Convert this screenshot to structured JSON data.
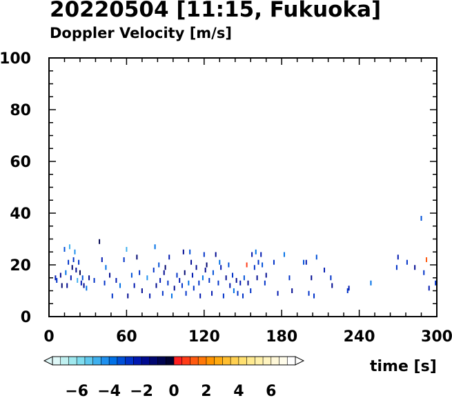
{
  "chart_data": {
    "type": "scatter",
    "title": "20220504 [11:15, Fukuoka]",
    "subtitle": "Doppler Velocity [m/s]",
    "xlabel": "time [s]",
    "ylabel": "",
    "xlim": [
      0,
      300
    ],
    "ylim": [
      0,
      100
    ],
    "x_ticks": [
      0,
      60,
      120,
      180,
      240,
      300
    ],
    "y_ticks": [
      0,
      20,
      40,
      60,
      80,
      100
    ],
    "grid": false,
    "colorbar": {
      "min": -7.5,
      "max": 7.5,
      "tick_values": [
        -6,
        -4,
        -2,
        0,
        2,
        4,
        6
      ],
      "tick_labels": [
        "−6",
        "−4",
        "−2",
        "0",
        "2",
        "4",
        "6"
      ],
      "colors": [
        "#dff8f8",
        "#bff0f0",
        "#9fe8ee",
        "#7fdcee",
        "#5fc8ee",
        "#3fb0ee",
        "#1f90ee",
        "#0070e6",
        "#0050d8",
        "#0032c8",
        "#0018b0",
        "#000a90",
        "#000670",
        "#000450",
        "#000230",
        "#ff2020",
        "#ff3c18",
        "#ff5a10",
        "#ff7808",
        "#ff9400",
        "#ffaa10",
        "#ffbe30",
        "#ffd050",
        "#ffe070",
        "#ffea90",
        "#fff0a8",
        "#fff4c0",
        "#fff8d8",
        "#fffcea",
        "#ffffff"
      ]
    },
    "points": [
      {
        "x": 5,
        "y": 15,
        "v": -2.5
      },
      {
        "x": 6,
        "y": 14,
        "v": -3
      },
      {
        "x": 9,
        "y": 16,
        "v": -2
      },
      {
        "x": 10,
        "y": 12,
        "v": -1.5
      },
      {
        "x": 12,
        "y": 26,
        "v": -3.5
      },
      {
        "x": 13,
        "y": 17,
        "v": -4
      },
      {
        "x": 14,
        "y": 12,
        "v": -2
      },
      {
        "x": 15,
        "y": 21,
        "v": -3
      },
      {
        "x": 16,
        "y": 27,
        "v": -5
      },
      {
        "x": 17,
        "y": 15,
        "v": -2.5
      },
      {
        "x": 18,
        "y": 19,
        "v": -1.5
      },
      {
        "x": 19,
        "y": 22,
        "v": -3
      },
      {
        "x": 20,
        "y": 25,
        "v": -4.5
      },
      {
        "x": 21,
        "y": 18,
        "v": -2
      },
      {
        "x": 22,
        "y": 14,
        "v": -5
      },
      {
        "x": 23,
        "y": 21,
        "v": -3
      },
      {
        "x": 24,
        "y": 17,
        "v": -1
      },
      {
        "x": 25,
        "y": 13,
        "v": -2.5
      },
      {
        "x": 26,
        "y": 15,
        "v": -3.5
      },
      {
        "x": 27,
        "y": 12,
        "v": -2
      },
      {
        "x": 29,
        "y": 11,
        "v": -4
      },
      {
        "x": 31,
        "y": 15,
        "v": -2
      },
      {
        "x": 35,
        "y": 14,
        "v": -3
      },
      {
        "x": 39,
        "y": 29,
        "v": -1
      },
      {
        "x": 41,
        "y": 22,
        "v": -2.5
      },
      {
        "x": 43,
        "y": 13,
        "v": -3
      },
      {
        "x": 44,
        "y": 19,
        "v": -4
      },
      {
        "x": 47,
        "y": 16,
        "v": -2
      },
      {
        "x": 49,
        "y": 8,
        "v": -3
      },
      {
        "x": 52,
        "y": 14,
        "v": -2.5
      },
      {
        "x": 55,
        "y": 12,
        "v": -4
      },
      {
        "x": 58,
        "y": 22,
        "v": -3
      },
      {
        "x": 60,
        "y": 26,
        "v": -5
      },
      {
        "x": 61,
        "y": 8,
        "v": -2
      },
      {
        "x": 64,
        "y": 16,
        "v": -3.5
      },
      {
        "x": 66,
        "y": 12,
        "v": -2.5
      },
      {
        "x": 68,
        "y": 23,
        "v": -1.5
      },
      {
        "x": 70,
        "y": 17,
        "v": -3
      },
      {
        "x": 72,
        "y": 10,
        "v": -2
      },
      {
        "x": 76,
        "y": 15,
        "v": -4.5
      },
      {
        "x": 78,
        "y": 8,
        "v": -2.5
      },
      {
        "x": 81,
        "y": 18,
        "v": -3
      },
      {
        "x": 82,
        "y": 27,
        "v": -4
      },
      {
        "x": 83,
        "y": 12,
        "v": -2
      },
      {
        "x": 85,
        "y": 20,
        "v": -3.5
      },
      {
        "x": 86,
        "y": 14,
        "v": -2.5
      },
      {
        "x": 88,
        "y": 9,
        "v": -3
      },
      {
        "x": 89,
        "y": 17,
        "v": -2
      },
      {
        "x": 90,
        "y": 19,
        "v": -1.5
      },
      {
        "x": 92,
        "y": 13,
        "v": -3
      },
      {
        "x": 93,
        "y": 23,
        "v": -2.5
      },
      {
        "x": 95,
        "y": 8,
        "v": -4
      },
      {
        "x": 97,
        "y": 11,
        "v": -2
      },
      {
        "x": 99,
        "y": 16,
        "v": -3
      },
      {
        "x": 101,
        "y": 14,
        "v": -2.5
      },
      {
        "x": 103,
        "y": 12,
        "v": -3
      },
      {
        "x": 104,
        "y": 25,
        "v": -2
      },
      {
        "x": 105,
        "y": 17,
        "v": -1.5
      },
      {
        "x": 106,
        "y": 9,
        "v": -3
      },
      {
        "x": 108,
        "y": 13,
        "v": -4
      },
      {
        "x": 109,
        "y": 25,
        "v": -3.5
      },
      {
        "x": 110,
        "y": 21,
        "v": -2
      },
      {
        "x": 111,
        "y": 16,
        "v": -2.5
      },
      {
        "x": 112,
        "y": 11,
        "v": -3
      },
      {
        "x": 114,
        "y": 19,
        "v": -2
      },
      {
        "x": 116,
        "y": 13,
        "v": -3
      },
      {
        "x": 117,
        "y": 8,
        "v": -2.5
      },
      {
        "x": 119,
        "y": 15,
        "v": -4
      },
      {
        "x": 120,
        "y": 24,
        "v": -3
      },
      {
        "x": 121,
        "y": 18,
        "v": -2
      },
      {
        "x": 122,
        "y": 20,
        "v": -1.5
      },
      {
        "x": 124,
        "y": 14,
        "v": -3
      },
      {
        "x": 126,
        "y": 9,
        "v": -2.5
      },
      {
        "x": 127,
        "y": 17,
        "v": -3.5
      },
      {
        "x": 129,
        "y": 24,
        "v": -2
      },
      {
        "x": 131,
        "y": 13,
        "v": -3
      },
      {
        "x": 132,
        "y": 21,
        "v": -4
      },
      {
        "x": 133,
        "y": 19,
        "v": -2.5
      },
      {
        "x": 135,
        "y": 8,
        "v": -3
      },
      {
        "x": 137,
        "y": 15,
        "v": -2
      },
      {
        "x": 139,
        "y": 20,
        "v": -3.5
      },
      {
        "x": 140,
        "y": 12,
        "v": -2.5
      },
      {
        "x": 142,
        "y": 16,
        "v": -3
      },
      {
        "x": 143,
        "y": 10,
        "v": -4
      },
      {
        "x": 145,
        "y": 14,
        "v": -2
      },
      {
        "x": 146,
        "y": 9,
        "v": -3
      },
      {
        "x": 148,
        "y": 13,
        "v": -2.5
      },
      {
        "x": 150,
        "y": 8,
        "v": -3
      },
      {
        "x": 151,
        "y": 15,
        "v": -3.5
      },
      {
        "x": 153,
        "y": 20,
        "v": 0.5
      },
      {
        "x": 154,
        "y": 13,
        "v": -2
      },
      {
        "x": 156,
        "y": 10,
        "v": -3
      },
      {
        "x": 157,
        "y": 24,
        "v": -2.5
      },
      {
        "x": 159,
        "y": 19,
        "v": -3
      },
      {
        "x": 160,
        "y": 25,
        "v": -4
      },
      {
        "x": 161,
        "y": 15,
        "v": -2
      },
      {
        "x": 162,
        "y": 21,
        "v": -3
      },
      {
        "x": 164,
        "y": 24,
        "v": -2.5
      },
      {
        "x": 165,
        "y": 20,
        "v": -3.5
      },
      {
        "x": 167,
        "y": 13,
        "v": -3
      },
      {
        "x": 168,
        "y": 16,
        "v": -2
      },
      {
        "x": 174,
        "y": 21,
        "v": -3
      },
      {
        "x": 177,
        "y": 9,
        "v": -2.5
      },
      {
        "x": 182,
        "y": 24,
        "v": -4
      },
      {
        "x": 186,
        "y": 15,
        "v": -3
      },
      {
        "x": 188,
        "y": 10,
        "v": -2
      },
      {
        "x": 197,
        "y": 21,
        "v": -3.5
      },
      {
        "x": 199,
        "y": 21,
        "v": -2.5
      },
      {
        "x": 201,
        "y": 9,
        "v": -3
      },
      {
        "x": 203,
        "y": 15,
        "v": -2
      },
      {
        "x": 205,
        "y": 8,
        "v": -3
      },
      {
        "x": 207,
        "y": 23,
        "v": -3.5
      },
      {
        "x": 213,
        "y": 18,
        "v": -2.5
      },
      {
        "x": 218,
        "y": 15,
        "v": -3
      },
      {
        "x": 219,
        "y": 12,
        "v": -2
      },
      {
        "x": 231,
        "y": 10,
        "v": -3
      },
      {
        "x": 232,
        "y": 11,
        "v": -2.5
      },
      {
        "x": 249,
        "y": 13,
        "v": -4
      },
      {
        "x": 269,
        "y": 19,
        "v": -3
      },
      {
        "x": 270,
        "y": 23,
        "v": -2.5
      },
      {
        "x": 277,
        "y": 21,
        "v": -3
      },
      {
        "x": 283,
        "y": 19,
        "v": -2
      },
      {
        "x": 288,
        "y": 38,
        "v": -3.5
      },
      {
        "x": 290,
        "y": 17,
        "v": -3
      },
      {
        "x": 292,
        "y": 22,
        "v": 1.0
      },
      {
        "x": 294,
        "y": 11,
        "v": -2.5
      },
      {
        "x": 299,
        "y": 13,
        "v": -3
      }
    ]
  }
}
